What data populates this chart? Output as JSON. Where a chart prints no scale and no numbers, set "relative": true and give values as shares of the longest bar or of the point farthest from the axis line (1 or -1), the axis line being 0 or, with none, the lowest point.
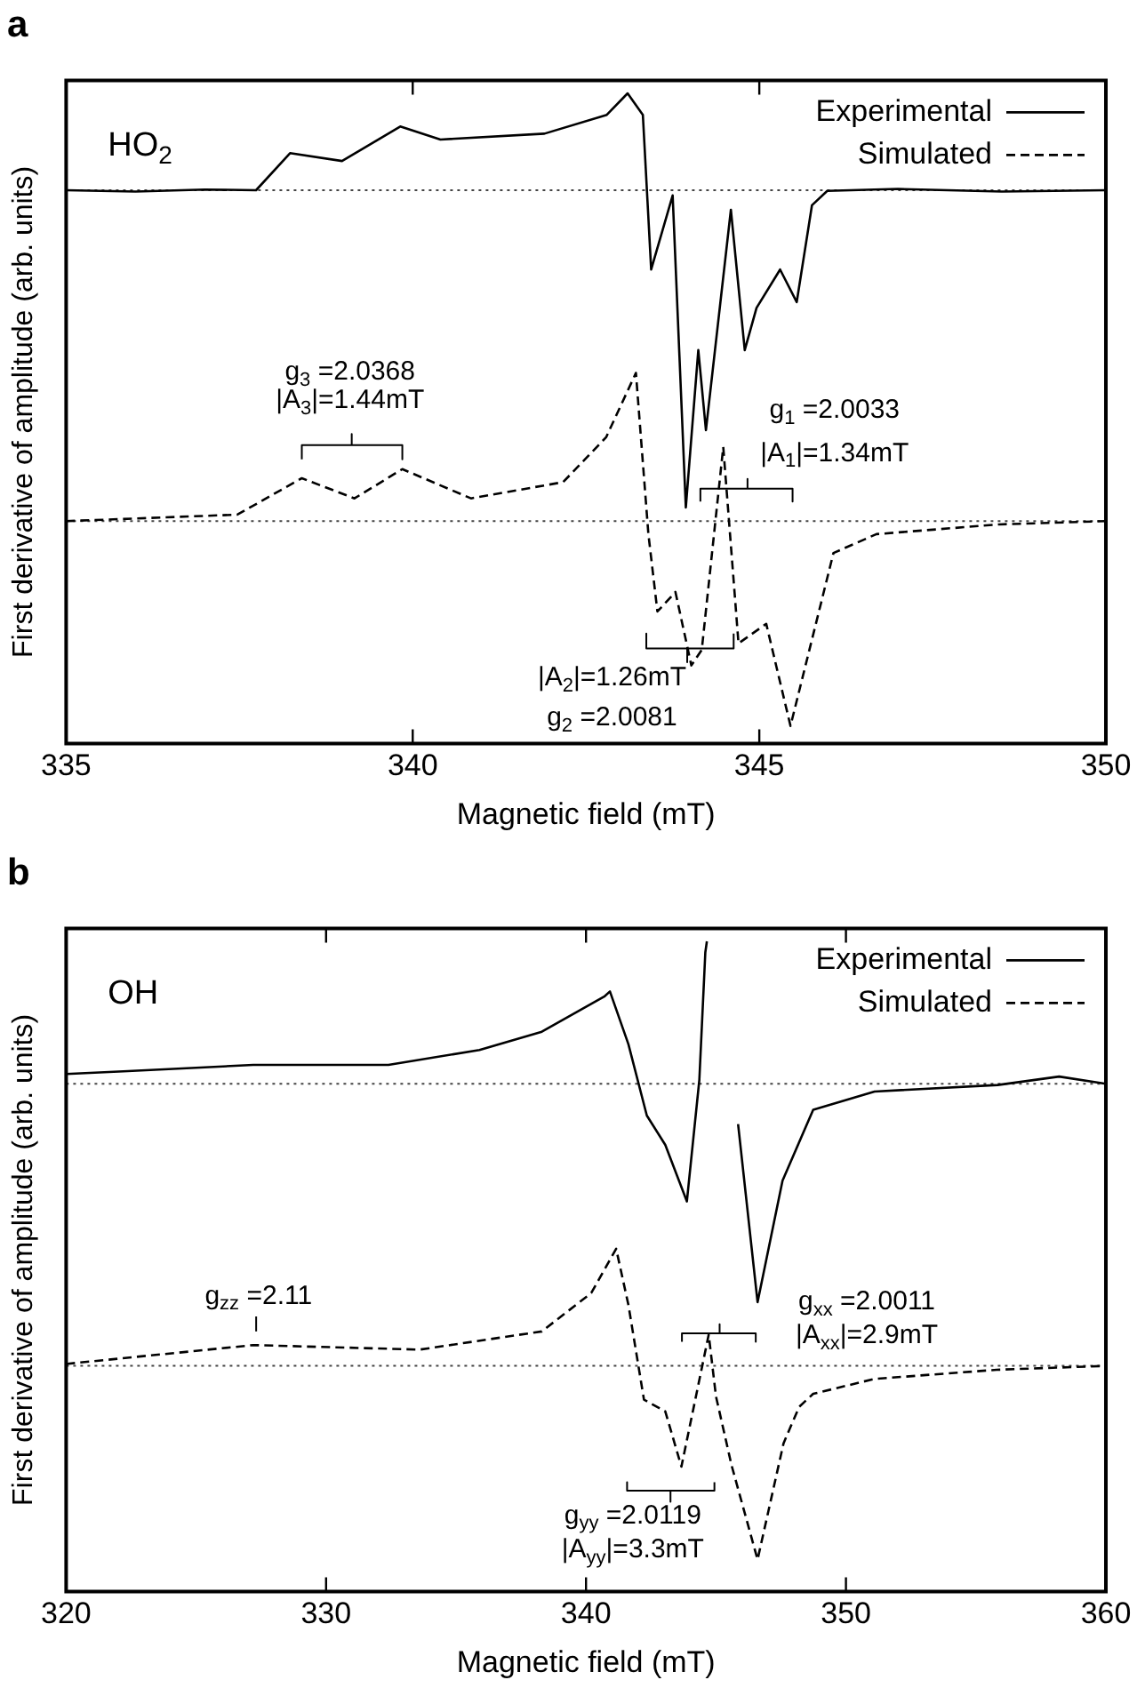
{
  "chart_data": [
    {
      "type": "line",
      "title": "a",
      "xlabel": "Magnetic field (mT)",
      "ylabel": "First derivative of amplitude (arb. units)",
      "relative": true,
      "xlim": [
        335,
        350
      ],
      "xticks": [
        335,
        340,
        345,
        350
      ],
      "legend": "top right",
      "series": [
        {
          "name": "Experimental",
          "color": "#000000",
          "line_style": "solid",
          "x": [
            335,
            336,
            337,
            337.74,
            338.23,
            338.98,
            339.82,
            340.4,
            341.9,
            342.8,
            343.1,
            343.32,
            343.44,
            343.75,
            343.94,
            344.12,
            344.23,
            344.59,
            344.79,
            344.96,
            345.3,
            345.54,
            345.76,
            345.98,
            347,
            348.5,
            350
          ],
          "values": [
            0.851,
            0.849,
            0.852,
            0.851,
            0.908,
            0.896,
            0.949,
            0.929,
            0.938,
            0.967,
            1.0,
            0.967,
            0.729,
            0.843,
            0.363,
            0.605,
            0.482,
            0.821,
            0.605,
            0.67,
            0.729,
            0.679,
            0.828,
            0.85,
            0.853,
            0.849,
            0.851
          ]
        },
        {
          "name": "Simulated",
          "color": "#000000",
          "line_style": "dashed",
          "x": [
            335,
            337.47,
            338.4,
            339.16,
            339.85,
            340.84,
            342.17,
            342.79,
            343.22,
            343.4,
            343.53,
            343.79,
            344.02,
            344.17,
            344.48,
            344.7,
            345.1,
            345.45,
            346.07,
            346.69,
            348.46,
            350
          ],
          "values": [
            0.342,
            0.352,
            0.408,
            0.377,
            0.422,
            0.377,
            0.402,
            0.471,
            0.57,
            0.322,
            0.203,
            0.233,
            0.12,
            0.144,
            0.456,
            0.154,
            0.184,
            0.027,
            0.293,
            0.322,
            0.337,
            0.342
          ]
        },
        {
          "type": "line",
          "color": "#000000",
          "line_style": "solid",
          "x": [
            338.4,
            338.4,
            339.12,
            339.12,
            339.12,
            339.85,
            339.85
          ],
          "values": [
            0.437,
            0.459,
            0.459,
            0.476,
            0.459,
            0.459,
            0.437
          ]
        },
        {
          "type": "line",
          "color": "#000000",
          "line_style": "solid",
          "x": [
            344.15,
            344.15,
            344.83,
            344.83,
            344.83,
            345.48,
            345.48
          ],
          "values": [
            0.372,
            0.392,
            0.392,
            0.407,
            0.392,
            0.392,
            0.372
          ]
        },
        {
          "type": "line",
          "color": "#000000",
          "line_style": "solid",
          "x": [
            343.37,
            343.37,
            343.96,
            343.96,
            343.96,
            344.63,
            344.63
          ],
          "values": [
            0.169,
            0.146,
            0.146,
            0.125,
            0.146,
            0.146,
            0.169
          ]
        }
      ],
      "ref_lines": [
        {
          "axis": "y",
          "value": 0.851,
          "color": "#444444",
          "line_style": "dotted"
        },
        {
          "axis": "y",
          "value": 0.342,
          "color": "#444444",
          "line_style": "dotted"
        }
      ],
      "annotations": [
        "HO$_{2}$",
        "g$_{3}$ =2.0368",
        "|A$_{3}$|=1.44mT",
        "g$_{1}$ =2.0033",
        "|A$_{1}$|=1.34mT",
        "|A$_{2}$|=1.26mT",
        "g$_{2}$ =2.0081"
      ]
    },
    {
      "type": "line",
      "title": "b",
      "xlabel": "Magnetic field (mT)",
      "ylabel": "First derivative of amplitude (arb. units)",
      "relative": true,
      "xlim": [
        320,
        360
      ],
      "xticks": [
        320,
        330,
        340,
        350,
        360
      ],
      "legend": "top right",
      "series": [
        {
          "name": "Experimental",
          "color": "#000000",
          "line_style": "solid",
          "x": [
            320,
            322.2,
            327.2,
            332.4,
            335.9,
            338.3,
            340.7,
            340.92,
            341.63,
            342.34,
            343.05,
            343.88,
            344.36,
            344.59,
            344.65,
            345.2,
            345.85,
            346.6,
            347.56,
            348.74,
            351.1,
            355.84,
            358.2,
            360
          ],
          "values": [
            0.796,
            0.8,
            0.81,
            0.81,
            0.833,
            0.861,
            0.915,
            0.923,
            0.842,
            0.732,
            0.687,
            0.6,
            0.787,
            0.983,
            1.0,
            null,
            0.719,
            0.445,
            0.632,
            0.741,
            0.769,
            0.779,
            0.792,
            0.781
          ]
        },
        {
          "name": "Simulated",
          "color": "#000000",
          "line_style": "dashed",
          "x": [
            320,
            327.2,
            333.6,
            338.3,
            340.2,
            341.16,
            341.63,
            342.23,
            343.05,
            343.67,
            344.72,
            345.0,
            345.6,
            346.6,
            347.6,
            348.2,
            348.74,
            351.1,
            355.8,
            360
          ],
          "values": [
            0.35,
            0.379,
            0.372,
            0.4,
            0.459,
            0.527,
            0.441,
            0.295,
            0.277,
            0.192,
            0.395,
            0.3,
            0.194,
            0.049,
            0.228,
            0.284,
            0.304,
            0.327,
            0.341,
            0.347
          ]
        },
        {
          "type": "line",
          "color": "#000000",
          "line_style": "solid",
          "x": [
            327.31,
            327.31
          ],
          "values": [
            0.4,
            0.423
          ]
        },
        {
          "type": "line",
          "color": "#000000",
          "line_style": "solid",
          "x": [
            343.69,
            343.69,
            345.14,
            345.14,
            345.14,
            346.53,
            346.53
          ],
          "values": [
            0.384,
            0.397,
            0.397,
            0.411,
            0.397,
            0.397,
            0.384
          ]
        },
        {
          "type": "line",
          "color": "#000000",
          "line_style": "solid",
          "x": [
            341.58,
            341.58,
            343.25,
            343.25,
            343.25,
            344.94,
            344.94
          ],
          "values": [
            0.168,
            0.155,
            0.155,
            0.138,
            0.155,
            0.155,
            0.168
          ]
        }
      ],
      "ref_lines": [
        {
          "axis": "y",
          "value": 0.781,
          "color": "#444444",
          "line_style": "dotted"
        },
        {
          "axis": "y",
          "value": 0.347,
          "color": "#444444",
          "line_style": "dotted"
        }
      ],
      "annotations": [
        "OH",
        "g$_{zz}$ =2.11",
        "g$_{xx}$ =2.0011",
        "|A$_{xx}$|=2.9mT",
        "g$_{yy}$ =2.0119",
        "|A$_{yy}$|=3.3mT"
      ]
    }
  ]
}
